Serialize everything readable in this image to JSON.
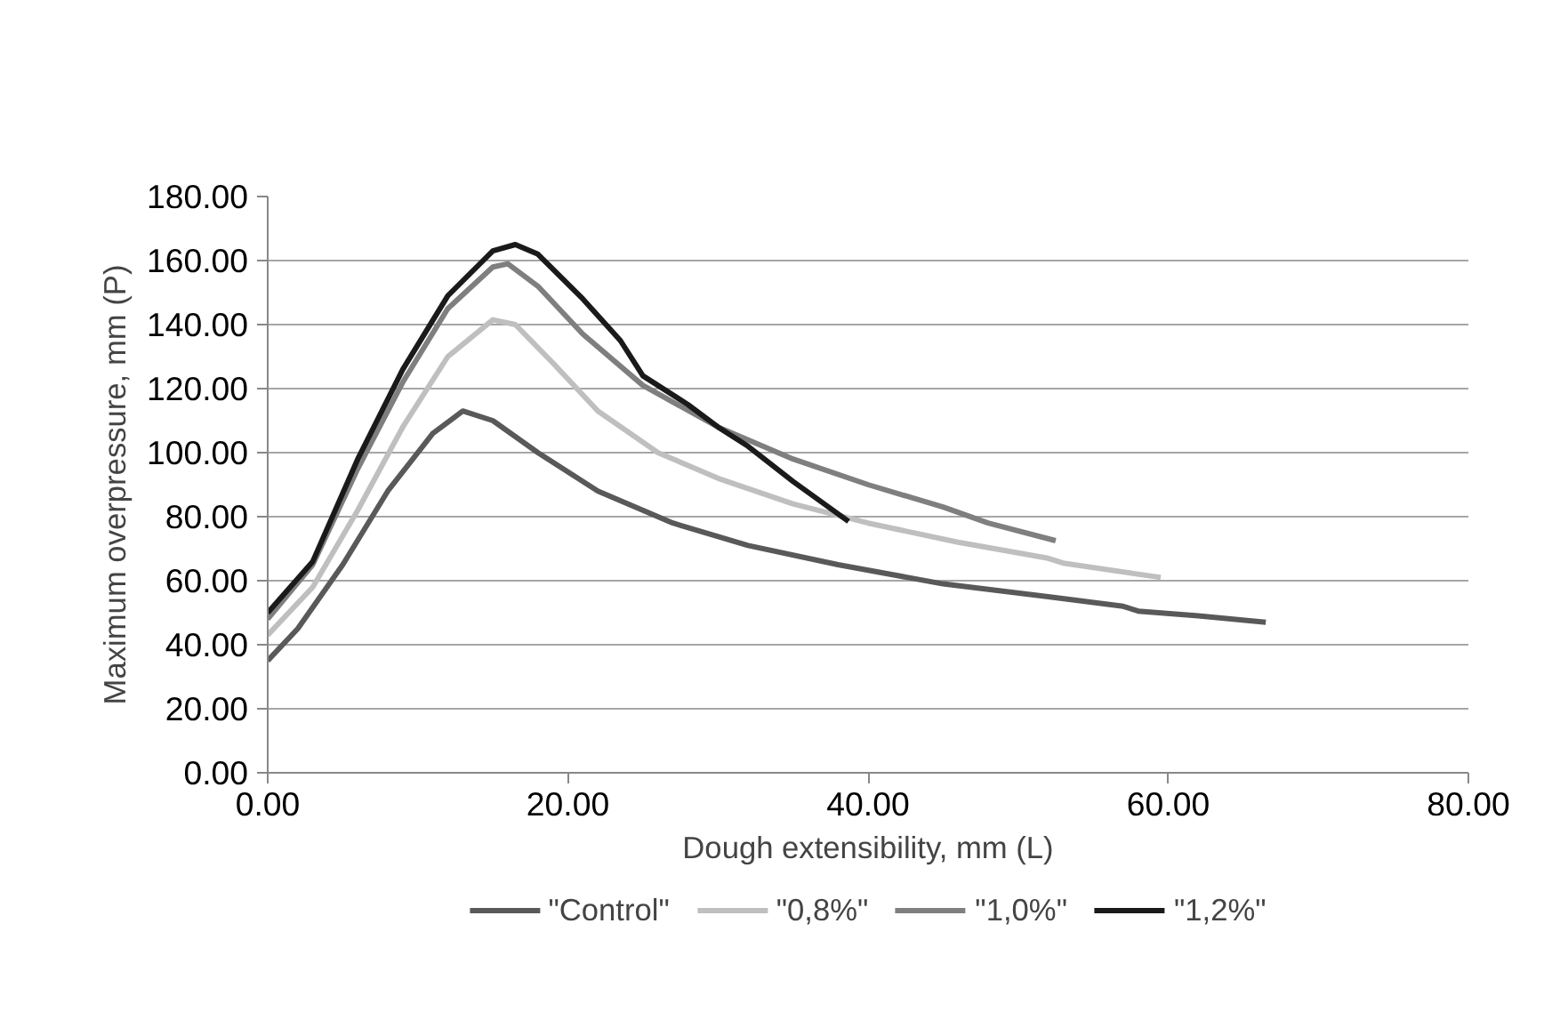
{
  "chart_data": {
    "type": "line",
    "xlabel": "Dough extensibility, mm (L)",
    "ylabel": "Maximum overpressure, mm (P)",
    "xlim": [
      0,
      80
    ],
    "ylim": [
      0,
      180
    ],
    "xticks": [
      {
        "value": 0,
        "label": "0.00"
      },
      {
        "value": 20,
        "label": "20.00"
      },
      {
        "value": 40,
        "label": "40.00"
      },
      {
        "value": 60,
        "label": "60.00"
      },
      {
        "value": 80,
        "label": "80.00"
      }
    ],
    "yticks": [
      {
        "value": 0,
        "label": "0.00"
      },
      {
        "value": 20,
        "label": "20.00"
      },
      {
        "value": 40,
        "label": "40.00"
      },
      {
        "value": 60,
        "label": "60.00"
      },
      {
        "value": 80,
        "label": "80.00"
      },
      {
        "value": 100,
        "label": "100.00"
      },
      {
        "value": 120,
        "label": "120.00"
      },
      {
        "value": 140,
        "label": "140.00"
      },
      {
        "value": 160,
        "label": "160.00"
      },
      {
        "value": 180,
        "label": "180.00"
      }
    ],
    "grid": "y",
    "legend": "bottom",
    "marker": "none",
    "line_style": "solid",
    "series": [
      {
        "name": "\"Control\"",
        "color": "#595959",
        "x": [
          0,
          2,
          5,
          8,
          11,
          13,
          15,
          18,
          22,
          27,
          32,
          38,
          45,
          52,
          57,
          58,
          62,
          66.5
        ],
        "values": [
          35,
          45,
          65,
          88,
          106,
          113,
          110,
          100,
          88,
          78,
          71,
          65,
          59,
          55,
          52,
          50.5,
          49,
          47
        ]
      },
      {
        "name": "\"0,8%\"",
        "color": "#bfbfbf",
        "x": [
          0,
          3,
          6,
          9,
          12,
          15,
          16.5,
          19,
          22,
          26,
          30,
          35,
          40,
          46,
          52,
          53,
          59.5
        ],
        "values": [
          43,
          58,
          82,
          108,
          130,
          141.5,
          140,
          128,
          113,
          100,
          92,
          84,
          78,
          72,
          67,
          65.5,
          61
        ]
      },
      {
        "name": "\"1,0%\"",
        "color": "#7f7f7f",
        "x": [
          0,
          3,
          6,
          9,
          12,
          15,
          16,
          18,
          21,
          25,
          30,
          35,
          40,
          45,
          48,
          52.5
        ],
        "values": [
          48,
          65,
          95,
          122,
          145,
          158,
          159,
          152,
          137,
          121,
          108,
          98,
          90,
          83,
          78,
          72.5
        ]
      },
      {
        "name": "\"1,2%\"",
        "color": "#1a1a1a",
        "x": [
          0,
          3,
          6,
          9,
          12,
          15,
          16.5,
          18,
          21,
          23.5,
          25,
          28,
          30,
          32,
          35,
          38.7
        ],
        "values": [
          50,
          66,
          98,
          126,
          149,
          163,
          165,
          162,
          148,
          135,
          124,
          115,
          108,
          102,
          91,
          78.5
        ]
      }
    ]
  }
}
